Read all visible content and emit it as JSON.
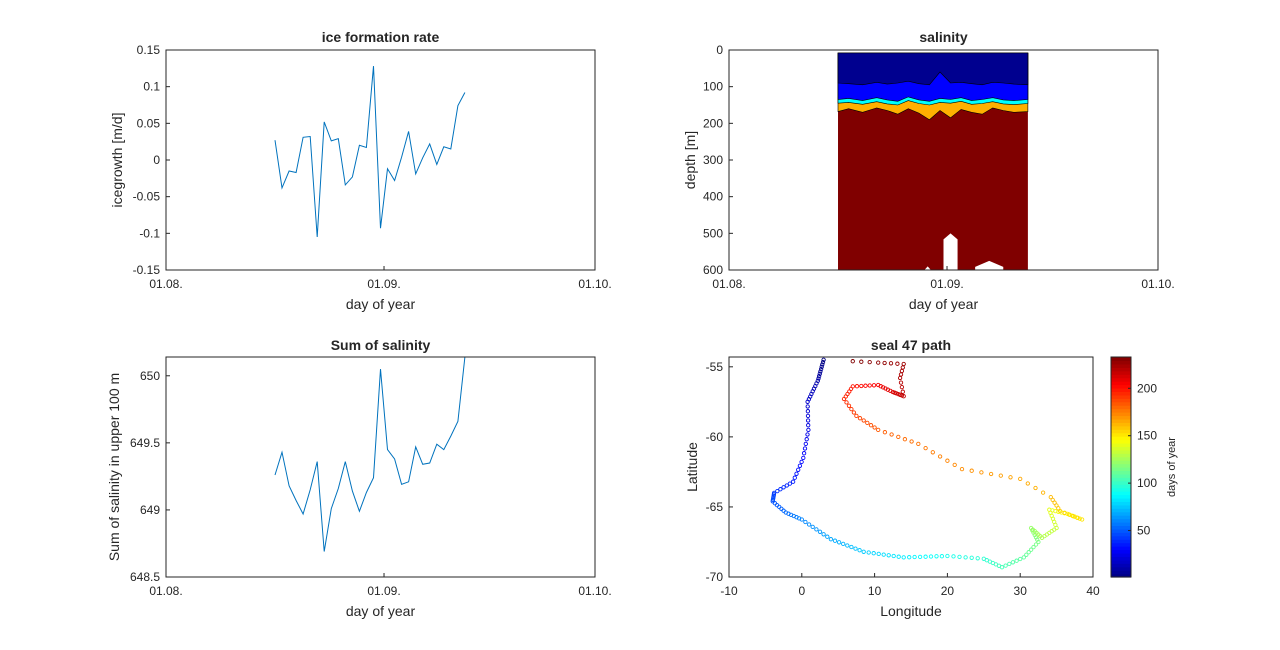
{
  "chart_data": [
    {
      "type": "line",
      "title": "ice formation rate",
      "xlabel": "day of year",
      "ylabel": "icegrowth [m/d]",
      "x_tick_labels": [
        "01.08.",
        "01.09.",
        "01.10."
      ],
      "x_ticks_doy": [
        213,
        244,
        274
      ],
      "y_tick_labels": [
        "-0.15",
        "-0.1",
        "-0.05",
        "0",
        "0.05",
        "0.1",
        "0.15"
      ],
      "ylim": [
        -0.15,
        0.15
      ],
      "xlim": [
        213,
        274
      ],
      "color": "#0072bd",
      "x": [
        228.5,
        229.5,
        230.5,
        231.5,
        232.5,
        233.5,
        234.5,
        235.5,
        236.5,
        237.5,
        238.5,
        239.5,
        240.5,
        241.5,
        242.5,
        243.5,
        244.5,
        245.5,
        246.5,
        247.5,
        248.5,
        249.5,
        250.5,
        251.5,
        252.5,
        253.5,
        254.5,
        255.5
      ],
      "values": [
        0.027,
        -0.038,
        -0.015,
        -0.017,
        0.031,
        0.032,
        -0.105,
        0.052,
        0.026,
        0.029,
        -0.034,
        -0.023,
        0.02,
        0.017,
        0.128,
        -0.093,
        -0.012,
        -0.028,
        0.004,
        0.039,
        -0.019,
        0.003,
        0.022,
        -0.006,
        0.018,
        0.015,
        0.074,
        0.092
      ]
    },
    {
      "type": "area",
      "title": "salinity",
      "xlabel": "day of year",
      "ylabel": "depth [m]",
      "x_tick_labels": [
        "01.08.",
        "01.09.",
        "01.10."
      ],
      "x_ticks_doy": [
        213,
        244,
        274
      ],
      "y_tick_labels": [
        "0",
        "100",
        "200",
        "300",
        "400",
        "500",
        "600"
      ],
      "ylim": [
        0,
        600
      ],
      "y_reversed": true,
      "xlim": [
        213,
        274
      ],
      "x_extent": [
        228.5,
        255.5
      ],
      "depth_extent": [
        0,
        600
      ],
      "layers": [
        {
          "color": "#00008f",
          "name": ""
        },
        {
          "color": "#0000ff",
          "name": ""
        },
        {
          "color": "#00ffff",
          "name": ""
        },
        {
          "color": "#ffb000",
          "name": ""
        },
        {
          "color": "#800000",
          "name": ""
        }
      ],
      "interface_x": [
        228.5,
        230,
        232,
        234,
        235.5,
        237,
        238.5,
        240,
        241.5,
        243,
        244.5,
        246,
        247.5,
        249,
        250.5,
        252,
        253.5,
        255.5
      ],
      "interface_dark_blue": [
        90,
        92,
        95,
        88,
        93,
        90,
        85,
        92,
        95,
        60,
        90,
        88,
        92,
        95,
        88,
        90,
        93,
        95
      ],
      "interface_blue_cyan": [
        135,
        132,
        138,
        130,
        136,
        140,
        128,
        136,
        140,
        132,
        135,
        130,
        138,
        135,
        130,
        136,
        138,
        135
      ],
      "interface_cyan_orange": [
        145,
        143,
        148,
        141,
        147,
        150,
        138,
        146,
        150,
        143,
        145,
        140,
        148,
        146,
        141,
        147,
        149,
        146
      ],
      "interface_orange_red": [
        168,
        160,
        170,
        158,
        165,
        175,
        160,
        172,
        190,
        165,
        185,
        162,
        170,
        175,
        158,
        165,
        170,
        168
      ],
      "gaps": [
        {
          "x": [
            240.5,
            242
          ],
          "top_depth": 590
        },
        {
          "x": [
            243.5,
            245.5
          ],
          "top_depth": 500
        },
        {
          "x": [
            248,
            252
          ],
          "top_depth": 575
        }
      ]
    },
    {
      "type": "line",
      "title": "Sum of salinity",
      "xlabel": "day of year",
      "ylabel": "Sum of salinity in upper 100 m",
      "x_tick_labels": [
        "01.08.",
        "01.09.",
        "01.10."
      ],
      "x_ticks_doy": [
        213,
        244,
        274
      ],
      "y_tick_labels": [
        "648.5",
        "649",
        "649.5",
        "650"
      ],
      "y_ticks": [
        648.5,
        649,
        649.5,
        650
      ],
      "ylim": [
        648.5,
        650.14
      ],
      "xlim": [
        213,
        274
      ],
      "color": "#0072bd",
      "x": [
        228.5,
        229.5,
        230.5,
        231.5,
        232.5,
        233.5,
        234.5,
        235.5,
        236.5,
        237.5,
        238.5,
        239.5,
        240.5,
        241.5,
        242.5,
        243.5,
        244.5,
        245.5,
        246.5,
        247.5,
        248.5,
        249.5,
        250.5,
        251.5,
        252.5,
        253.5,
        254.5,
        255.5
      ],
      "values": [
        649.26,
        649.43,
        649.18,
        649.07,
        648.97,
        649.15,
        649.36,
        648.69,
        649.01,
        649.16,
        649.36,
        649.14,
        648.99,
        649.13,
        649.24,
        650.05,
        649.45,
        649.38,
        649.19,
        649.21,
        649.47,
        649.34,
        649.35,
        649.49,
        649.45,
        649.55,
        649.66,
        650.14
      ]
    },
    {
      "type": "scatter",
      "title": "seal 47 path",
      "xlabel": "Longitude",
      "ylabel": "Latitude",
      "xlim": [
        -10,
        40
      ],
      "ylim": [
        -70,
        -54.3
      ],
      "x_ticks": [
        -10,
        0,
        10,
        20,
        30,
        40
      ],
      "y_ticks": [
        -70,
        -65,
        -60,
        -55
      ],
      "x_tick_labels": [
        "-10",
        "0",
        "10",
        "20",
        "30",
        "40"
      ],
      "y_tick_labels": [
        "-70",
        "-65",
        "-60",
        "-55"
      ],
      "colormap": "jet",
      "color_range": [
        1,
        233
      ],
      "colorbar_ticks": [
        50,
        100,
        150,
        200
      ],
      "colorbar_tick_labels": [
        "50",
        "100",
        "150",
        "200"
      ],
      "colorbar_label": "days of year",
      "path_waypoints": [
        {
          "day": 1,
          "lon": 3.0,
          "lat": -54.5
        },
        {
          "day": 10,
          "lon": 2.2,
          "lat": -56.0
        },
        {
          "day": 18,
          "lon": 0.8,
          "lat": -57.5
        },
        {
          "day": 24,
          "lon": 0.9,
          "lat": -59.5
        },
        {
          "day": 30,
          "lon": 0.2,
          "lat": -61.5
        },
        {
          "day": 36,
          "lon": -1.2,
          "lat": -63.2
        },
        {
          "day": 42,
          "lon": -3.8,
          "lat": -64.0
        },
        {
          "day": 48,
          "lon": -4.0,
          "lat": -64.6
        },
        {
          "day": 54,
          "lon": -2.2,
          "lat": -65.4
        },
        {
          "day": 60,
          "lon": 0.0,
          "lat": -65.9
        },
        {
          "day": 68,
          "lon": 4.0,
          "lat": -67.3
        },
        {
          "day": 76,
          "lon": 8.5,
          "lat": -68.2
        },
        {
          "day": 84,
          "lon": 14.0,
          "lat": -68.6
        },
        {
          "day": 92,
          "lon": 20.0,
          "lat": -68.5
        },
        {
          "day": 98,
          "lon": 25.0,
          "lat": -68.7
        },
        {
          "day": 104,
          "lon": 27.5,
          "lat": -69.3
        },
        {
          "day": 110,
          "lon": 30.5,
          "lat": -68.6
        },
        {
          "day": 116,
          "lon": 32.5,
          "lat": -67.5
        },
        {
          "day": 122,
          "lon": 31.5,
          "lat": -66.5
        },
        {
          "day": 128,
          "lon": 33.0,
          "lat": -67.2
        },
        {
          "day": 134,
          "lon": 35.0,
          "lat": -66.5
        },
        {
          "day": 140,
          "lon": 34.0,
          "lat": -65.2
        },
        {
          "day": 146,
          "lon": 36.5,
          "lat": -65.5
        },
        {
          "day": 152,
          "lon": 38.5,
          "lat": -65.9
        },
        {
          "day": 157,
          "lon": 35.5,
          "lat": -65.3
        },
        {
          "day": 162,
          "lon": 34.2,
          "lat": -64.3
        },
        {
          "day": 166,
          "lon": 30.0,
          "lat": -63.0
        },
        {
          "day": 172,
          "lon": 22.0,
          "lat": -62.3
        },
        {
          "day": 178,
          "lon": 16.0,
          "lat": -60.5
        },
        {
          "day": 184,
          "lon": 10.5,
          "lat": -59.5
        },
        {
          "day": 190,
          "lon": 7.5,
          "lat": -58.5
        },
        {
          "day": 195,
          "lon": 5.8,
          "lat": -57.3
        },
        {
          "day": 200,
          "lon": 7.0,
          "lat": -56.4
        },
        {
          "day": 206,
          "lon": 10.5,
          "lat": -56.3
        },
        {
          "day": 212,
          "lon": 12.5,
          "lat": -56.8
        },
        {
          "day": 218,
          "lon": 14.0,
          "lat": -57.1
        },
        {
          "day": 222,
          "lon": 13.5,
          "lat": -55.8
        },
        {
          "day": 226,
          "lon": 14.0,
          "lat": -54.8
        },
        {
          "day": 230,
          "lon": 10.5,
          "lat": -54.7
        },
        {
          "day": 233,
          "lon": 7.0,
          "lat": -54.6
        }
      ]
    }
  ]
}
